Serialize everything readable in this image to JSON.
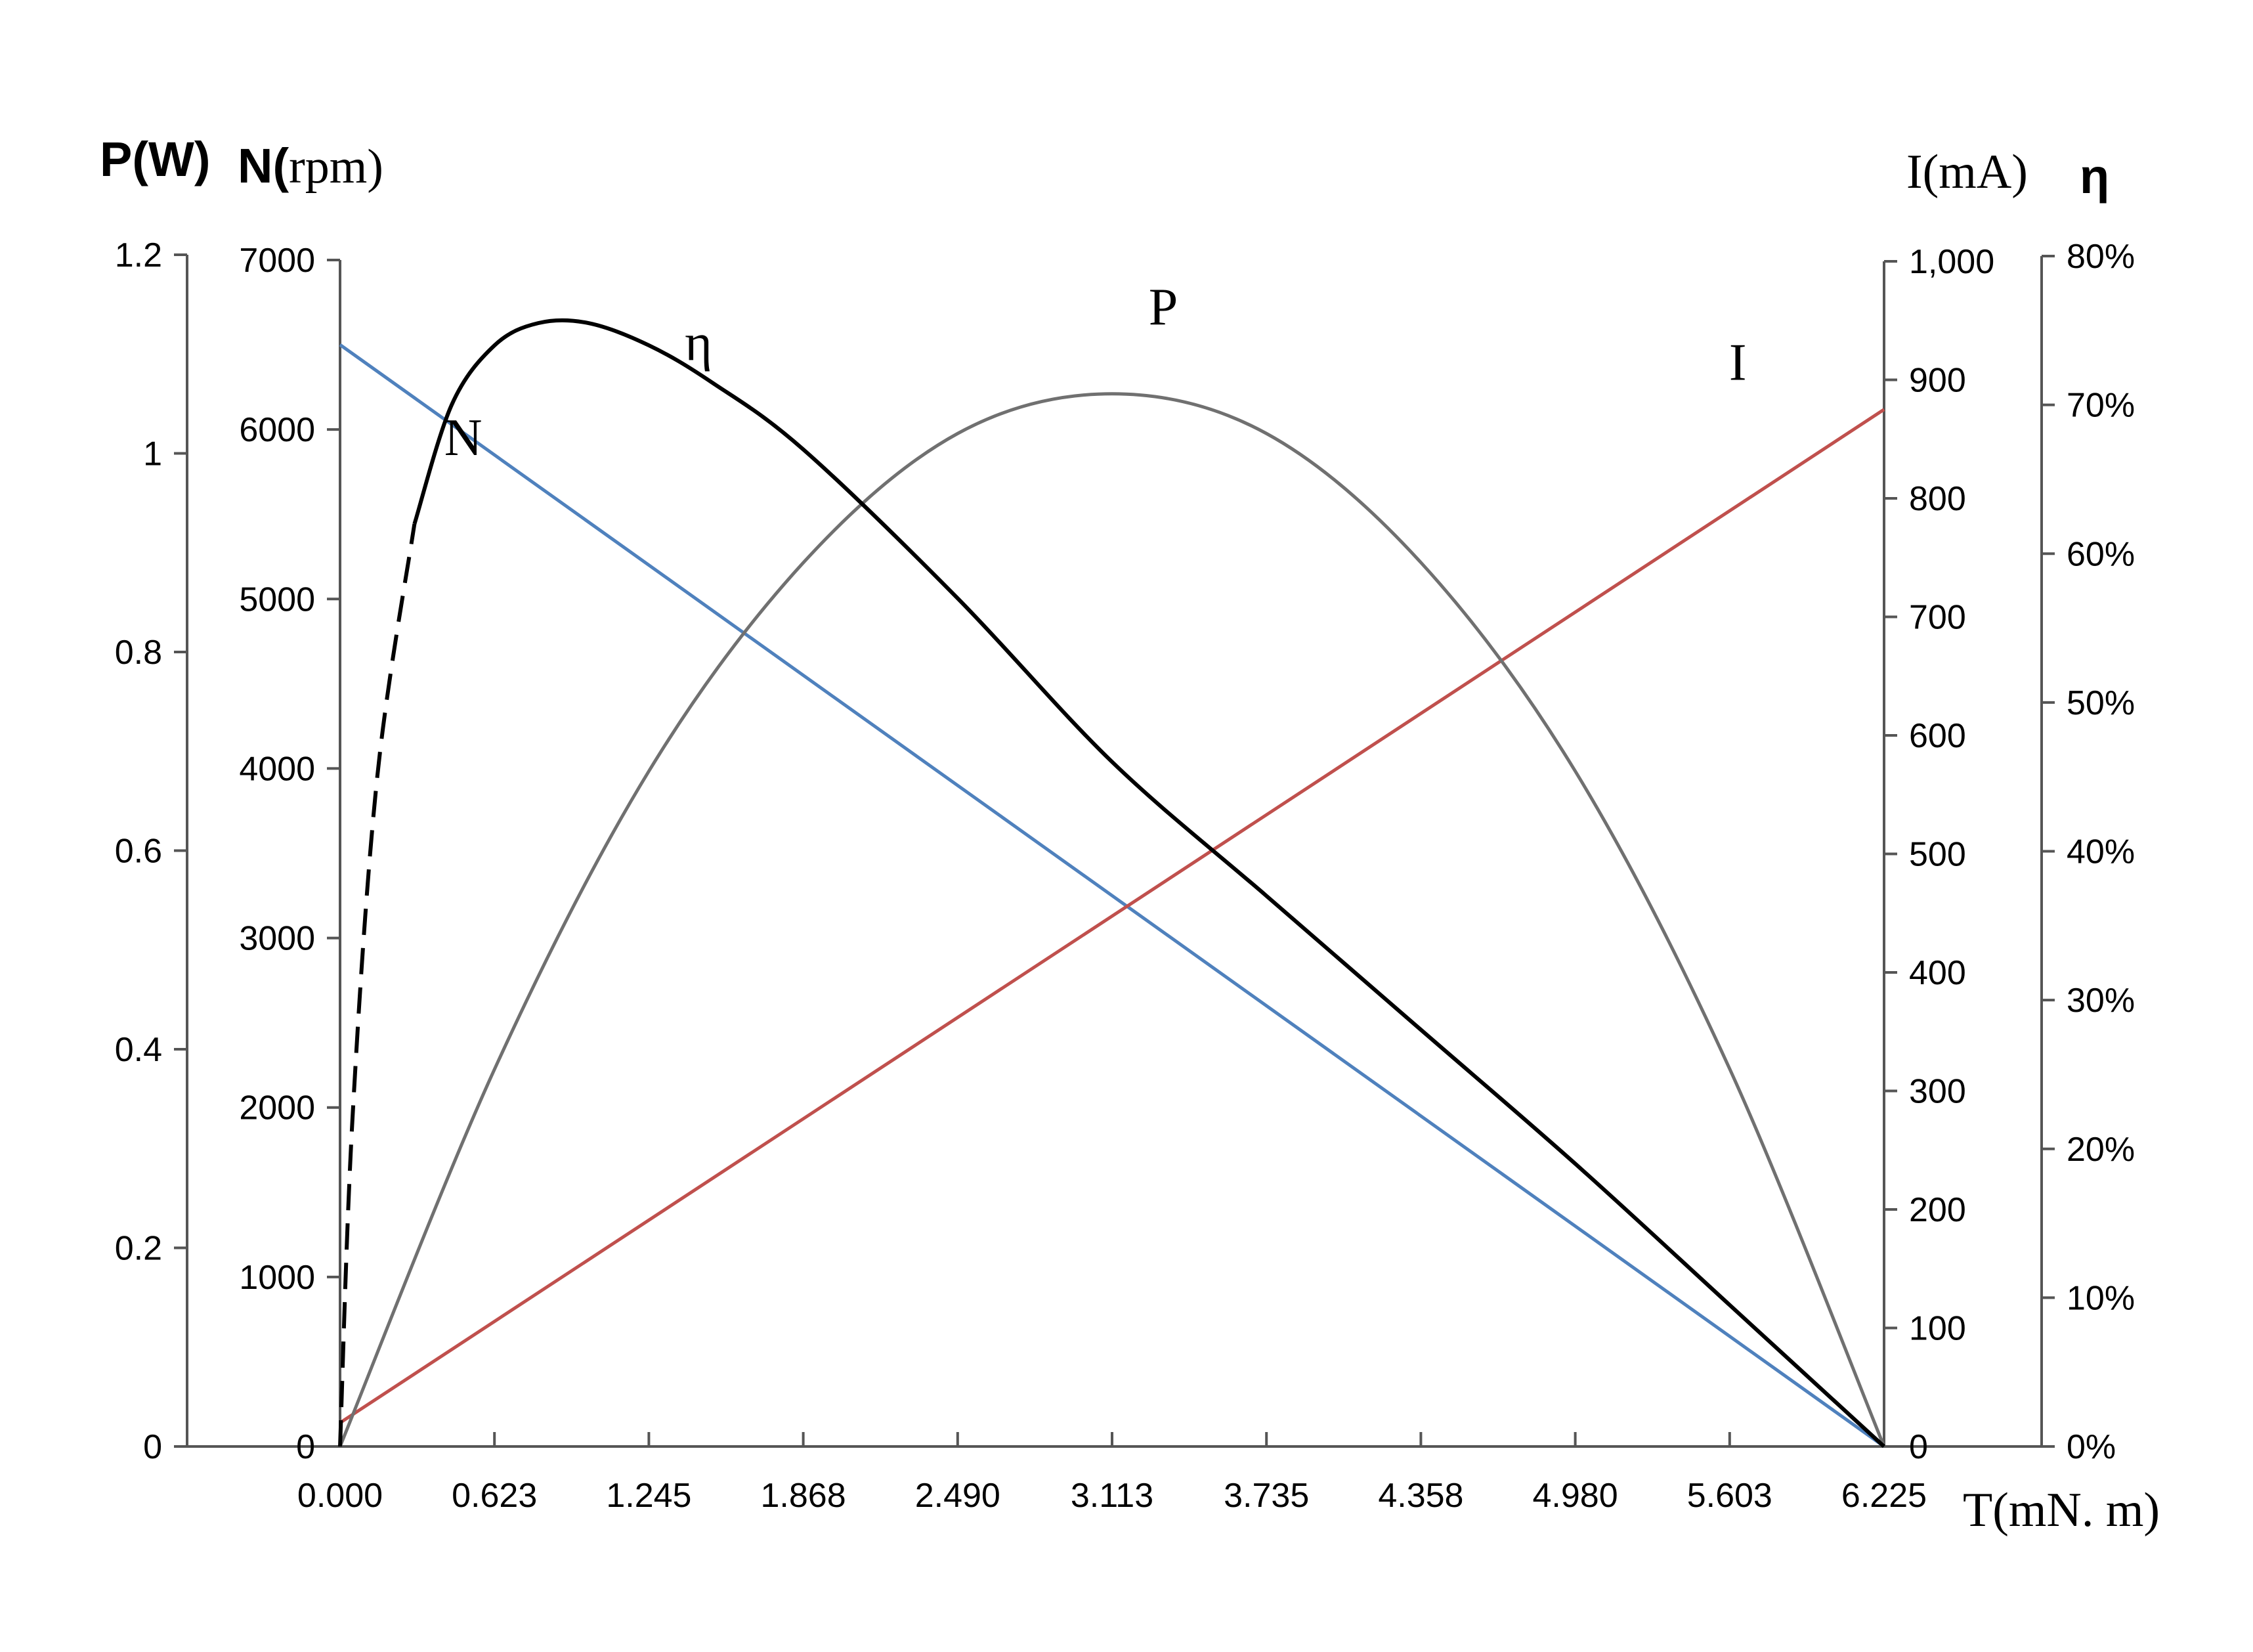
{
  "chart_data": {
    "type": "line",
    "x": {
      "label": "T(mN. m)",
      "ticks": [
        "0.000",
        "0.623",
        "1.245",
        "1.868",
        "2.490",
        "3.113",
        "3.735",
        "4.358",
        "4.980",
        "5.603",
        "6.225"
      ],
      "range": [
        0,
        6.225
      ]
    },
    "axes": {
      "P": {
        "label": "P(W)",
        "range": [
          0,
          1.2
        ],
        "ticks": [
          "0",
          "0.2",
          "0.4",
          "0.6",
          "0.8",
          "1",
          "1.2"
        ]
      },
      "N": {
        "label_bold": "N(",
        "label_serif": "rpm)",
        "range": [
          0,
          7000
        ],
        "ticks": [
          "0",
          "1000",
          "2000",
          "3000",
          "4000",
          "5000",
          "6000",
          "7000"
        ]
      },
      "I": {
        "label": "I(mA)",
        "range": [
          0,
          1000
        ],
        "ticks": [
          "0",
          "100",
          "200",
          "300",
          "400",
          "500",
          "600",
          "700",
          "800",
          "900",
          "1,000"
        ]
      },
      "eta": {
        "label": "η",
        "range": [
          0,
          80
        ],
        "ticks": [
          "0%",
          "10%",
          "20%",
          "30%",
          "40%",
          "50%",
          "60%",
          "70%",
          "80%"
        ]
      }
    },
    "series": [
      {
        "name": "N",
        "axis": "N",
        "color": "#4f81bd",
        "x": [
          0,
          6.225
        ],
        "y": [
          6500,
          0
        ]
      },
      {
        "name": "I",
        "axis": "I",
        "color": "#c0504d",
        "x": [
          0,
          6.225
        ],
        "y": [
          20,
          875
        ]
      },
      {
        "name": "P",
        "axis": "P",
        "color": "#707070",
        "x": [
          0,
          0.623,
          1.245,
          1.868,
          2.49,
          3.113,
          3.735,
          4.358,
          4.98,
          5.603,
          6.225
        ],
        "y": [
          0,
          0.38,
          0.68,
          0.89,
          1.02,
          1.06,
          1.02,
          0.89,
          0.68,
          0.38,
          0
        ]
      },
      {
        "name": "η",
        "axis": "eta",
        "color": "#000000",
        "x": [
          0,
          0.05,
          0.15,
          0.3,
          0.45,
          0.623,
          0.8,
          1.0,
          1.245,
          1.5,
          1.868,
          2.49,
          3.113,
          3.735,
          4.358,
          4.98,
          5.603,
          6.225
        ],
        "y": [
          0,
          22,
          45,
          62,
          70,
          74,
          75.5,
          75.5,
          74,
          71.5,
          67,
          57,
          46,
          37,
          28,
          19,
          9.5,
          0
        ],
        "dashed_until": 0.3
      }
    ]
  }
}
